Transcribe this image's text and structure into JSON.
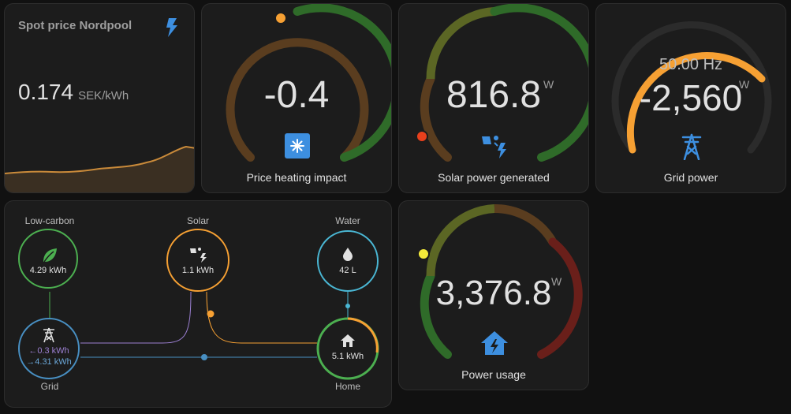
{
  "spot": {
    "title": "Spot price Nordpool",
    "value": "0.174",
    "unit": "SEK/kWh",
    "icon": "lightning-bolt-icon"
  },
  "heating": {
    "value": "-0.4",
    "label": "Price heating impact",
    "icon": "snowflake-icon"
  },
  "solar": {
    "value": "816.8",
    "unit": "W",
    "label": "Solar power generated",
    "icon": "solar-power-icon"
  },
  "gridpower": {
    "frequency": "50.00 Hz",
    "value": "-2,560",
    "unit": "W",
    "label": "Grid power",
    "icon": "transmission-tower-icon"
  },
  "usage": {
    "value": "3,376.8",
    "unit": "W",
    "label": "Power usage",
    "icon": "home-lightning-icon"
  },
  "flow": {
    "lowcarbon": {
      "label": "Low-carbon",
      "value": "4.29 kWh",
      "color": "#4caf50"
    },
    "solar": {
      "label": "Solar",
      "value": "1.1 kWh",
      "color": "#f6a033"
    },
    "water": {
      "label": "Water",
      "value": "42 L",
      "color": "#4ab7d4"
    },
    "grid": {
      "label": "Grid",
      "in": "←0.3 kWh",
      "out": "→4.31 kWh",
      "color": "#488fc2"
    },
    "home": {
      "label": "Home",
      "value": "5.1 kWh",
      "color": "#4caf50"
    }
  }
}
